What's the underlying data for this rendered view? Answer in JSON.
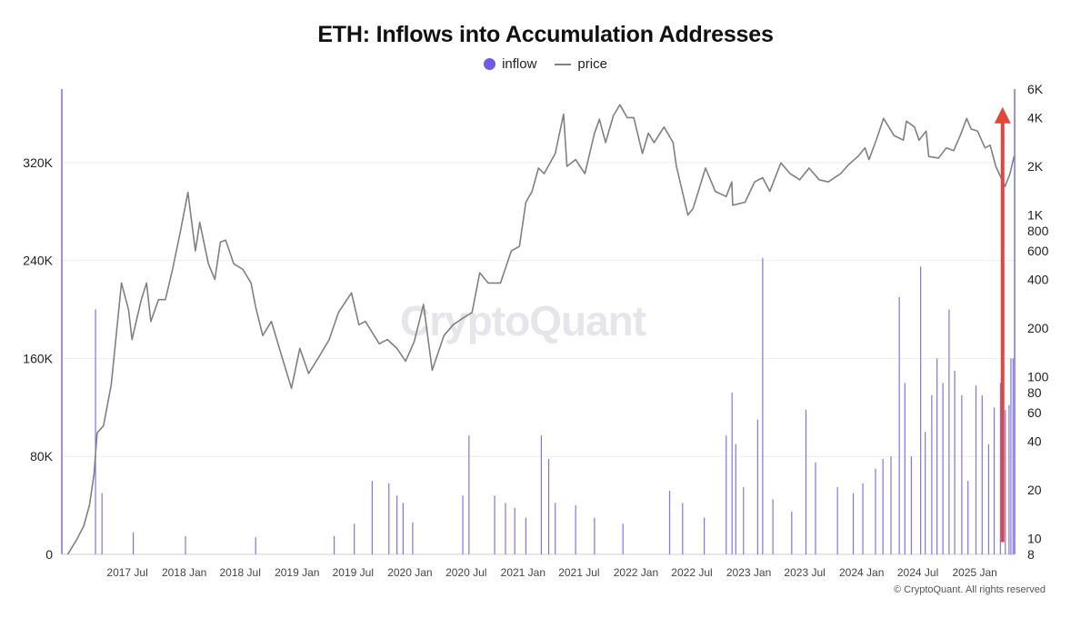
{
  "title": "ETH: Inflows into Accumulation Addresses",
  "legend": {
    "inflow_label": "inflow",
    "price_label": "price"
  },
  "watermark": "CryptoQuant",
  "copyright": "© CryptoQuant. All rights reserved",
  "colors": {
    "inflow": "#6c5ce7",
    "price": "#808080",
    "arrow": "#e0473b",
    "axis_line": "#7b6fe0"
  },
  "chart_data": {
    "type": "bar",
    "title": "ETH: Inflows into Accumulation Addresses",
    "x_tick_labels": [
      "2017 Jul",
      "2018 Jan",
      "2018 Jul",
      "2019 Jan",
      "2019 Jul",
      "2020 Jan",
      "2020 Jul",
      "2021 Jan",
      "2021 Jul",
      "2022 Jan",
      "2022 Jul",
      "2023 Jan",
      "2023 Jul",
      "2024 Jan",
      "2024 Jul",
      "2025 Jan"
    ],
    "x_tick_dates": [
      "2017-07-01",
      "2018-01-01",
      "2018-07-01",
      "2019-01-01",
      "2019-07-01",
      "2020-01-01",
      "2020-07-01",
      "2021-01-01",
      "2021-07-01",
      "2022-01-01",
      "2022-07-01",
      "2023-01-01",
      "2023-07-01",
      "2024-01-01",
      "2024-07-01",
      "2025-01-01"
    ],
    "x_range": [
      "2016-12-01",
      "2025-05-10"
    ],
    "y_left": {
      "label": "inflow",
      "range": [
        0,
        380000
      ],
      "ticks": [
        0,
        80000,
        160000,
        240000,
        320000
      ],
      "tick_labels": [
        "0",
        "80K",
        "160K",
        "240K",
        "320K"
      ]
    },
    "y_right": {
      "label": "price",
      "scale": "log",
      "range": [
        8,
        6000
      ],
      "ticks": [
        8,
        10,
        20,
        40,
        60,
        80,
        100,
        200,
        400,
        600,
        800,
        1000,
        2000,
        4000,
        6000
      ],
      "tick_labels": [
        "8",
        "10",
        "20",
        "40",
        "60",
        "80",
        "100",
        "200",
        "400",
        "600",
        "800",
        "1K",
        "2K",
        "4K",
        "6K"
      ]
    },
    "grid": true,
    "legend_position": "top-center",
    "series": [
      {
        "name": "inflow",
        "type": "bar",
        "axis": "left",
        "points": [
          [
            "2017-03-20",
            200000
          ],
          [
            "2017-04-10",
            50000
          ],
          [
            "2017-07-20",
            18000
          ],
          [
            "2018-01-05",
            15000
          ],
          [
            "2018-08-20",
            14000
          ],
          [
            "2019-05-01",
            15000
          ],
          [
            "2019-07-05",
            25000
          ],
          [
            "2019-09-01",
            60000
          ],
          [
            "2019-10-25",
            58000
          ],
          [
            "2019-11-20",
            48000
          ],
          [
            "2019-12-10",
            42000
          ],
          [
            "2020-01-10",
            26000
          ],
          [
            "2020-06-20",
            48000
          ],
          [
            "2020-07-10",
            97000
          ],
          [
            "2020-10-01",
            48000
          ],
          [
            "2020-11-05",
            42000
          ],
          [
            "2020-12-05",
            38000
          ],
          [
            "2021-01-10",
            30000
          ],
          [
            "2021-03-01",
            97000
          ],
          [
            "2021-03-25",
            78000
          ],
          [
            "2021-04-15",
            42000
          ],
          [
            "2021-06-20",
            40000
          ],
          [
            "2021-08-20",
            30000
          ],
          [
            "2021-11-20",
            25000
          ],
          [
            "2022-04-20",
            52000
          ],
          [
            "2022-06-01",
            42000
          ],
          [
            "2022-08-10",
            30000
          ],
          [
            "2022-10-20",
            97000
          ],
          [
            "2022-11-08",
            132000
          ],
          [
            "2022-11-20",
            90000
          ],
          [
            "2022-12-15",
            55000
          ],
          [
            "2023-01-30",
            110000
          ],
          [
            "2023-02-15",
            242000
          ],
          [
            "2023-03-20",
            45000
          ],
          [
            "2023-05-20",
            35000
          ],
          [
            "2023-07-05",
            118000
          ],
          [
            "2023-08-05",
            75000
          ],
          [
            "2023-10-15",
            55000
          ],
          [
            "2023-12-05",
            50000
          ],
          [
            "2024-01-05",
            58000
          ],
          [
            "2024-02-15",
            70000
          ],
          [
            "2024-03-10",
            78000
          ],
          [
            "2024-04-05",
            80000
          ],
          [
            "2024-05-02",
            210000
          ],
          [
            "2024-05-20",
            140000
          ],
          [
            "2024-06-10",
            80000
          ],
          [
            "2024-07-10",
            235000
          ],
          [
            "2024-07-25",
            100000
          ],
          [
            "2024-08-15",
            130000
          ],
          [
            "2024-09-01",
            160000
          ],
          [
            "2024-09-20",
            140000
          ],
          [
            "2024-10-10",
            200000
          ],
          [
            "2024-10-28",
            150000
          ],
          [
            "2024-11-20",
            130000
          ],
          [
            "2024-12-10",
            60000
          ],
          [
            "2025-01-05",
            138000
          ],
          [
            "2025-01-25",
            130000
          ],
          [
            "2025-02-15",
            90000
          ],
          [
            "2025-03-05",
            120000
          ],
          [
            "2025-03-25",
            140000
          ],
          [
            "2025-04-10",
            118000
          ],
          [
            "2025-04-22",
            122000
          ],
          [
            "2025-04-28",
            160000
          ],
          [
            "2025-05-05",
            160000
          ]
        ]
      },
      {
        "name": "price",
        "type": "line",
        "axis": "right",
        "points": [
          [
            "2016-12-20",
            8
          ],
          [
            "2017-01-20",
            10
          ],
          [
            "2017-02-10",
            12
          ],
          [
            "2017-02-28",
            16
          ],
          [
            "2017-03-15",
            25
          ],
          [
            "2017-03-25",
            45
          ],
          [
            "2017-04-15",
            50
          ],
          [
            "2017-05-10",
            90
          ],
          [
            "2017-06-12",
            380
          ],
          [
            "2017-07-05",
            260
          ],
          [
            "2017-07-16",
            170
          ],
          [
            "2017-08-15",
            300
          ],
          [
            "2017-09-01",
            380
          ],
          [
            "2017-09-15",
            220
          ],
          [
            "2017-10-10",
            300
          ],
          [
            "2017-11-01",
            300
          ],
          [
            "2017-11-25",
            470
          ],
          [
            "2017-12-20",
            800
          ],
          [
            "2018-01-13",
            1380
          ],
          [
            "2018-02-06",
            600
          ],
          [
            "2018-02-20",
            900
          ],
          [
            "2018-03-20",
            500
          ],
          [
            "2018-04-10",
            400
          ],
          [
            "2018-04-28",
            680
          ],
          [
            "2018-05-15",
            700
          ],
          [
            "2018-06-10",
            500
          ],
          [
            "2018-07-10",
            460
          ],
          [
            "2018-08-05",
            380
          ],
          [
            "2018-08-20",
            270
          ],
          [
            "2018-09-12",
            180
          ],
          [
            "2018-10-10",
            220
          ],
          [
            "2018-11-20",
            120
          ],
          [
            "2018-12-14",
            85
          ],
          [
            "2019-01-10",
            150
          ],
          [
            "2019-02-07",
            105
          ],
          [
            "2019-03-15",
            135
          ],
          [
            "2019-04-15",
            170
          ],
          [
            "2019-05-15",
            250
          ],
          [
            "2019-06-26",
            330
          ],
          [
            "2019-07-20",
            210
          ],
          [
            "2019-08-10",
            220
          ],
          [
            "2019-09-24",
            160
          ],
          [
            "2019-10-20",
            170
          ],
          [
            "2019-11-20",
            150
          ],
          [
            "2019-12-18",
            125
          ],
          [
            "2020-01-15",
            165
          ],
          [
            "2020-02-14",
            280
          ],
          [
            "2020-03-13",
            110
          ],
          [
            "2020-04-20",
            180
          ],
          [
            "2020-05-20",
            210
          ],
          [
            "2020-06-20",
            230
          ],
          [
            "2020-07-20",
            250
          ],
          [
            "2020-08-14",
            440
          ],
          [
            "2020-09-10",
            380
          ],
          [
            "2020-10-20",
            380
          ],
          [
            "2020-11-24",
            600
          ],
          [
            "2020-12-20",
            640
          ],
          [
            "2021-01-10",
            1200
          ],
          [
            "2021-01-30",
            1400
          ],
          [
            "2021-02-20",
            1950
          ],
          [
            "2021-03-10",
            1800
          ],
          [
            "2021-04-15",
            2400
          ],
          [
            "2021-05-12",
            4200
          ],
          [
            "2021-05-23",
            2000
          ],
          [
            "2021-06-20",
            2200
          ],
          [
            "2021-07-20",
            1800
          ],
          [
            "2021-08-20",
            3200
          ],
          [
            "2021-09-05",
            3900
          ],
          [
            "2021-09-25",
            2800
          ],
          [
            "2021-10-20",
            4100
          ],
          [
            "2021-11-10",
            4800
          ],
          [
            "2021-12-04",
            4000
          ],
          [
            "2021-12-25",
            4000
          ],
          [
            "2022-01-22",
            2400
          ],
          [
            "2022-02-10",
            3200
          ],
          [
            "2022-03-01",
            2800
          ],
          [
            "2022-04-02",
            3500
          ],
          [
            "2022-05-01",
            2800
          ],
          [
            "2022-05-12",
            2000
          ],
          [
            "2022-06-18",
            1000
          ],
          [
            "2022-07-05",
            1100
          ],
          [
            "2022-08-14",
            1950
          ],
          [
            "2022-09-15",
            1400
          ],
          [
            "2022-10-20",
            1300
          ],
          [
            "2022-11-07",
            1600
          ],
          [
            "2022-11-10",
            1150
          ],
          [
            "2022-12-20",
            1200
          ],
          [
            "2023-01-20",
            1600
          ],
          [
            "2023-02-15",
            1700
          ],
          [
            "2023-03-10",
            1400
          ],
          [
            "2023-04-15",
            2100
          ],
          [
            "2023-05-15",
            1800
          ],
          [
            "2023-06-15",
            1650
          ],
          [
            "2023-07-15",
            1950
          ],
          [
            "2023-08-17",
            1650
          ],
          [
            "2023-09-15",
            1600
          ],
          [
            "2023-10-25",
            1800
          ],
          [
            "2023-11-20",
            2050
          ],
          [
            "2023-12-20",
            2300
          ],
          [
            "2024-01-12",
            2600
          ],
          [
            "2024-01-25",
            2200
          ],
          [
            "2024-02-20",
            3000
          ],
          [
            "2024-03-12",
            3950
          ],
          [
            "2024-04-15",
            3100
          ],
          [
            "2024-05-15",
            2900
          ],
          [
            "2024-05-25",
            3800
          ],
          [
            "2024-06-20",
            3500
          ],
          [
            "2024-07-05",
            2900
          ],
          [
            "2024-07-28",
            3300
          ],
          [
            "2024-08-05",
            2300
          ],
          [
            "2024-09-06",
            2250
          ],
          [
            "2024-10-01",
            2600
          ],
          [
            "2024-10-25",
            2500
          ],
          [
            "2024-11-15",
            3100
          ],
          [
            "2024-12-06",
            3950
          ],
          [
            "2024-12-20",
            3400
          ],
          [
            "2025-01-10",
            3300
          ],
          [
            "2025-02-03",
            2600
          ],
          [
            "2025-02-20",
            2700
          ],
          [
            "2025-03-10",
            2000
          ],
          [
            "2025-04-09",
            1500
          ],
          [
            "2025-04-25",
            1800
          ],
          [
            "2025-05-08",
            2300
          ]
        ]
      }
    ],
    "annotations": [
      {
        "type": "arrow",
        "direction": "up",
        "color": "#e0473b",
        "date": "2025-04-01",
        "from_inflow": 10000,
        "to_price": 4300
      }
    ]
  }
}
